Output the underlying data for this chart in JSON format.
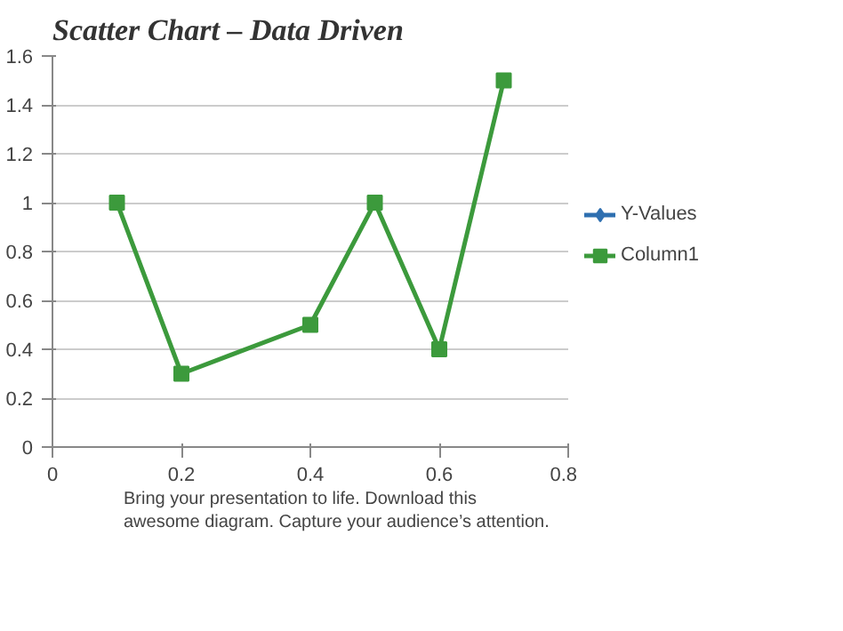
{
  "chart_data": {
    "type": "line",
    "title": "Scatter Chart – Data Driven",
    "x": [
      0.1,
      0.2,
      0.4,
      0.5,
      0.6,
      0.7
    ],
    "series": [
      {
        "name": "Y-Values",
        "color": "#2e6fb0",
        "marker": "diamond",
        "values": [
          null,
          null,
          null,
          null,
          null,
          null
        ]
      },
      {
        "name": "Column1",
        "color": "#3c9a3c",
        "marker": "square",
        "values": [
          1,
          0.3,
          0.5,
          1,
          0.4,
          1.5
        ]
      }
    ],
    "xlim": [
      0,
      0.8
    ],
    "xticks": [
      0,
      0.2,
      0.4,
      0.6,
      0.8
    ],
    "ylim": [
      0,
      1.6
    ],
    "yticks": [
      0,
      0.2,
      0.4,
      0.6,
      0.8,
      1,
      1.2,
      1.4,
      1.6
    ],
    "grid": "y",
    "legend": "right",
    "annotations": [
      "Bring your presentation to life. Download this awesome diagram. Capture your audience’s attention."
    ]
  }
}
